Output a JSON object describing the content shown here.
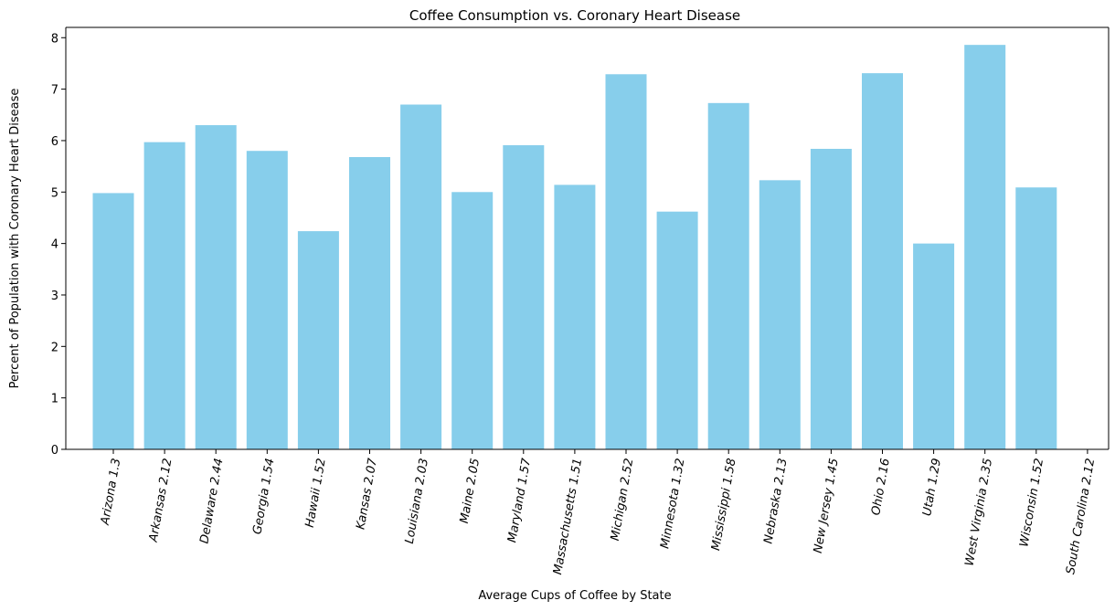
{
  "chart_data": {
    "type": "bar",
    "title": "Coffee Consumption vs. Coronary Heart Disease",
    "xlabel": "Average Cups of Coffee by State",
    "ylabel": "Percent of Population with Coronary Heart Disease",
    "ylim": [
      0,
      8.2
    ],
    "yticks": [
      0,
      1,
      2,
      3,
      4,
      5,
      6,
      7,
      8
    ],
    "grid": false,
    "legend": "none",
    "bar_color": "#87CEEB",
    "categories": [
      "Arizona 1.3",
      "Arkansas 2.12",
      "Delaware 2.44",
      "Georgia 1.54",
      "Hawaii 1.52",
      "Kansas 2.07",
      "Louisiana 2.03",
      "Maine 2.05",
      "Maryland 1.57",
      "Massachusetts 1.51",
      "Michigan 2.52",
      "Minnesota 1.32",
      "Mississippi 1.58",
      "Nebraska 2.13",
      "New Jersey 1.45",
      "Ohio 2.16",
      "Utah 1.29",
      "West Virginia 2.35",
      "Wisconsin 1.52",
      "South Carolina 2.12"
    ],
    "values": [
      4.98,
      5.97,
      6.3,
      5.8,
      4.24,
      5.68,
      6.7,
      5.0,
      5.91,
      5.14,
      7.29,
      4.62,
      6.73,
      5.23,
      5.84,
      7.31,
      4.0,
      7.86,
      5.09,
      null
    ]
  }
}
